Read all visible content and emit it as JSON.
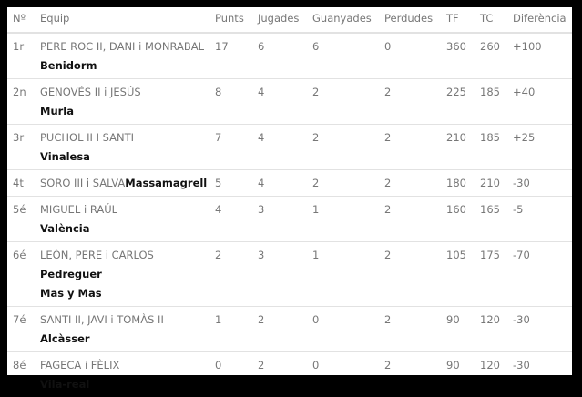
{
  "headers": [
    "Nº",
    "Equip",
    "Punts",
    "Jugades",
    "Guanyades",
    "Perdudes",
    "TF",
    "TC",
    "Diferència"
  ],
  "rows": [
    {
      "pos": "1r",
      "players": "PERE ROC II, DANI i MONRABAL",
      "clubs": [
        "Benidorm"
      ],
      "inline": false,
      "punts": "17",
      "jugades": "6",
      "guanyades": "6",
      "perdudes": "0",
      "tf": "360",
      "tc": "260",
      "dif": "+100"
    },
    {
      "pos": "2n",
      "players": "GENOVÉS II i JESÚS",
      "clubs": [
        "Murla"
      ],
      "inline": false,
      "punts": "8",
      "jugades": "4",
      "guanyades": "2",
      "perdudes": "2",
      "tf": "225",
      "tc": "185",
      "dif": "+40"
    },
    {
      "pos": "3r",
      "players": "PUCHOL II I SANTI",
      "clubs": [
        "Vinalesa"
      ],
      "inline": false,
      "punts": "7",
      "jugades": "4",
      "guanyades": "2",
      "perdudes": "2",
      "tf": "210",
      "tc": "185",
      "dif": "+25"
    },
    {
      "pos": "4t",
      "players": "SORO III i SALVA",
      "clubs": [
        "Massamagrell"
      ],
      "inline": true,
      "punts": "5",
      "jugades": "4",
      "guanyades": "2",
      "perdudes": "2",
      "tf": "180",
      "tc": "210",
      "dif": "-30"
    },
    {
      "pos": "5é",
      "players": "MIGUEL i RAÚL",
      "clubs": [
        "València"
      ],
      "inline": false,
      "punts": "4",
      "jugades": "3",
      "guanyades": "1",
      "perdudes": "2",
      "tf": "160",
      "tc": "165",
      "dif": "-5"
    },
    {
      "pos": "6é",
      "players": "LEÓN, PERE i CARLOS",
      "clubs": [
        "Pedreguer",
        "Mas y Mas"
      ],
      "inline": false,
      "punts": "2",
      "jugades": "3",
      "guanyades": "1",
      "perdudes": "2",
      "tf": "105",
      "tc": "175",
      "dif": "-70"
    },
    {
      "pos": "7é",
      "players": "SANTI II, JAVI i TOMÀS II",
      "clubs": [
        "Alcàsser"
      ],
      "inline": false,
      "punts": "1",
      "jugades": "2",
      "guanyades": "0",
      "perdudes": "2",
      "tf": "90",
      "tc": "120",
      "dif": "-30"
    },
    {
      "pos": "8é",
      "players": "FAGECA i FÈLIX",
      "clubs": [
        "Vila-real"
      ],
      "inline": false,
      "punts": "0",
      "jugades": "2",
      "guanyades": "0",
      "perdudes": "2",
      "tf": "90",
      "tc": "120",
      "dif": "-30"
    }
  ]
}
